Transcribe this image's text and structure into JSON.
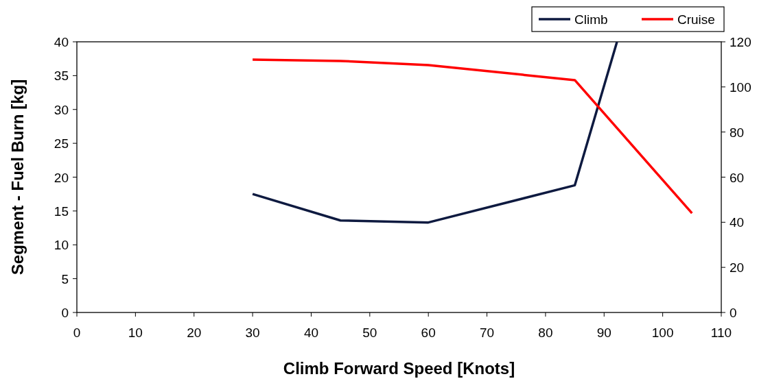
{
  "chart_data": {
    "type": "line",
    "xlabel": "Climb Forward Speed [Knots]",
    "ylabel": "Segment - Fuel Burn [kg]",
    "xlim": [
      0,
      110
    ],
    "xticks": [
      0,
      10,
      20,
      30,
      40,
      50,
      60,
      70,
      80,
      90,
      100,
      110
    ],
    "ylim": [
      0,
      40
    ],
    "yticks": [
      0,
      5,
      10,
      15,
      20,
      25,
      30,
      35,
      40
    ],
    "y2lim": [
      0,
      120
    ],
    "y2ticks": [
      0,
      20,
      40,
      60,
      80,
      100,
      120
    ],
    "x": [
      30,
      45,
      60,
      85,
      105
    ],
    "series": [
      {
        "name": "Climb",
        "color": "#0e1a40",
        "x": [
          30,
          45,
          60,
          85,
          92.2
        ],
        "values": [
          17.5,
          13.6,
          13.3,
          18.8,
          40
        ]
      },
      {
        "name": "Cruise",
        "color": "#ff0000",
        "axis": "y2",
        "values": [
          112.1,
          111.5,
          109.7,
          103,
          44
        ]
      }
    ],
    "legend": "top right",
    "grid": false,
    "marker": "none",
    "line_style": "solid"
  }
}
